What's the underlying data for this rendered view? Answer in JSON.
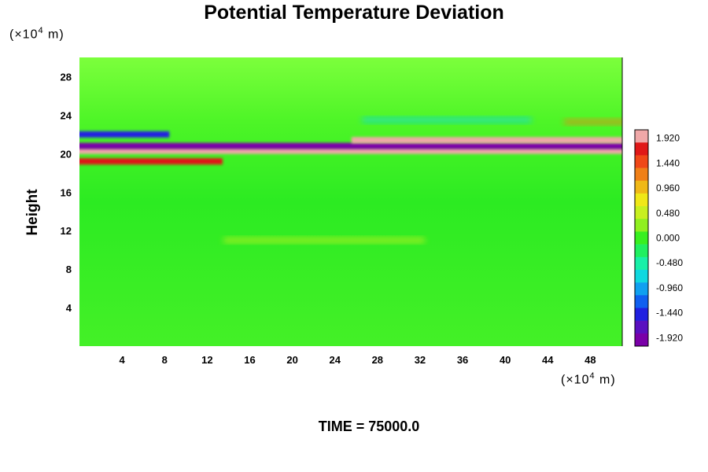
{
  "chart_data": {
    "type": "heatmap",
    "title": "Potential Temperature Deviation",
    "ylabel": "Height",
    "xlabel": "",
    "y_unit": {
      "prefix": "(×10",
      "exp": "4",
      "suffix": " m)"
    },
    "x_unit": {
      "prefix": "(×10",
      "exp": "4",
      "suffix": " m)"
    },
    "xlim": [
      0,
      51
    ],
    "ylim": [
      0,
      30
    ],
    "x_ticks": [
      "4",
      "8",
      "12",
      "16",
      "20",
      "24",
      "28",
      "32",
      "36",
      "40",
      "44",
      "48"
    ],
    "y_ticks": [
      "4",
      "8",
      "12",
      "16",
      "20",
      "24",
      "28"
    ],
    "colorbar": {
      "ticks": [
        "1.920",
        "1.440",
        "0.960",
        "0.480",
        "0.000",
        "-0.480",
        "-0.960",
        "-1.440",
        "-1.920"
      ],
      "range": [
        -2.08,
        2.08
      ]
    },
    "field_bands": [
      {
        "height": 19.2,
        "value": 1.8,
        "x_extent": [
          0,
          13
        ]
      },
      {
        "height": 20.3,
        "value": 2.1,
        "x_extent": [
          0,
          51
        ]
      },
      {
        "height": 20.8,
        "value": -2.1,
        "x_extent": [
          0,
          51
        ]
      },
      {
        "height": 21.4,
        "value": 1.9,
        "x_extent": [
          26,
          51
        ]
      },
      {
        "height": 22.0,
        "value": -1.5,
        "x_extent": [
          0,
          8
        ]
      },
      {
        "height": 23.3,
        "value": 1.2,
        "x_extent": [
          46,
          51
        ]
      },
      {
        "height": 23.5,
        "value": -0.8,
        "x_extent": [
          27,
          42
        ]
      },
      {
        "height": 11.0,
        "value": 0.4,
        "x_extent": [
          14,
          32
        ]
      }
    ],
    "footer": "TIME = 75000.0"
  }
}
